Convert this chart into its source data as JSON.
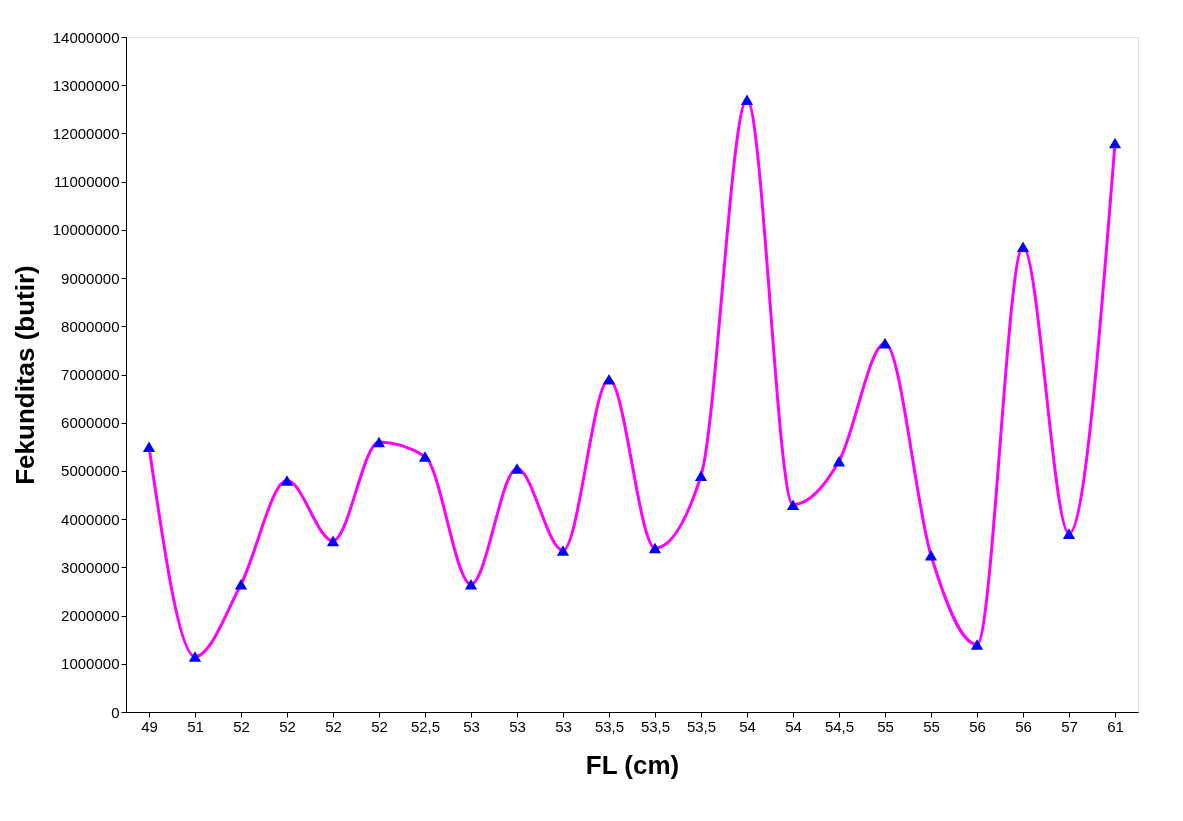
{
  "chart_data": {
    "type": "line",
    "xlabel": "FL (cm)",
    "ylabel": "Fekunditas (butir)",
    "categories": [
      "49",
      "51",
      "52",
      "52",
      "52",
      "52",
      "52,5",
      "53",
      "53",
      "53",
      "53,5",
      "53,5",
      "53,5",
      "54",
      "54",
      "54,5",
      "55",
      "55",
      "56",
      "56",
      "57",
      "61"
    ],
    "series": [
      {
        "color": "#ff00ff",
        "colors": [
          "#0000ff",
          "#0000ff",
          "#0000ff",
          "#0000ff",
          "#0000ff",
          "#0000ff",
          "#0000ff",
          "#0000ff",
          "#0000ff",
          "#0000ff",
          "#0000ff",
          "#0000ff",
          "#0000ff",
          "#0000ff",
          "#0000ff",
          "#0000ff",
          "#0000ff",
          "#0000ff",
          "#0000ff",
          "#0000ff",
          "#0000ff",
          "#0000ff"
        ],
        "values": [
          5500000,
          1150000,
          2650000,
          4800000,
          3550000,
          5600000,
          5300000,
          2650000,
          5050000,
          3350000,
          6900000,
          3400000,
          4900000,
          12700000,
          4300000,
          5200000,
          7650000,
          3250000,
          1400000,
          9650000,
          3700000,
          11800000
        ]
      }
    ],
    "ylim": [
      0,
      14000000
    ],
    "yticks": [
      0,
      1000000,
      2000000,
      3000000,
      4000000,
      5000000,
      6000000,
      7000000,
      8000000,
      9000000,
      10000000,
      11000000,
      12000000,
      13000000,
      14000000
    ],
    "marker": "triangle",
    "line_style": "solid",
    "grid": false
  }
}
